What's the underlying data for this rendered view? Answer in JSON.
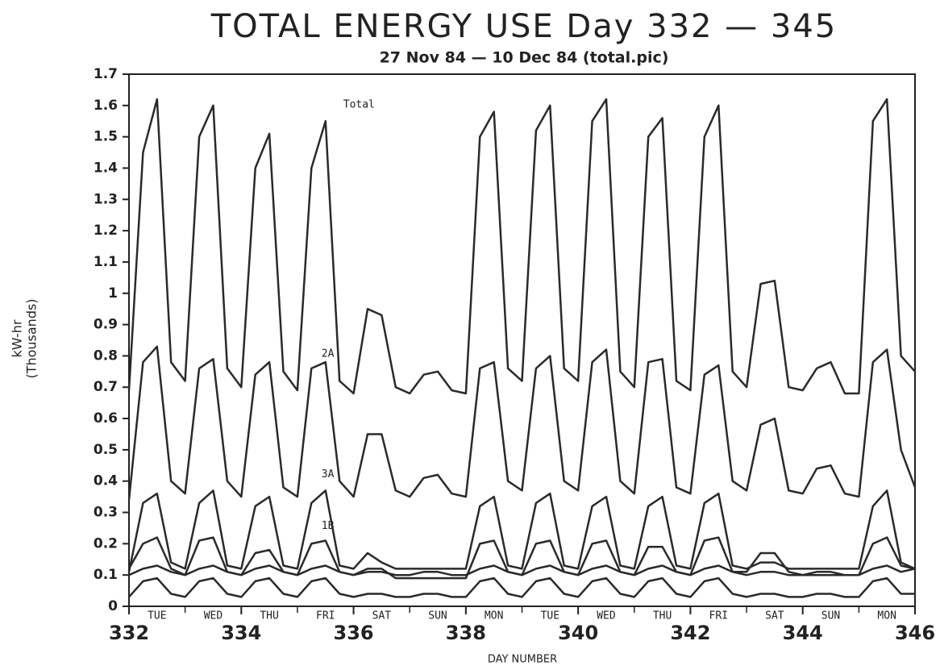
{
  "chart_data": {
    "type": "line",
    "title": "TOTAL ENERGY USE Day 332 — 345",
    "subtitle": "27 Nov 84 — 10 Dec 84 (total.pic)",
    "x_label": "DAY NUMBER",
    "y_label": [
      "kW-hr",
      "(Thousands)"
    ],
    "day_labels": [
      "TUE",
      "WED",
      "THU",
      "FRI",
      "SAT",
      "SUN",
      "MON",
      "TUE",
      "WED",
      "THU",
      "FRI",
      "SAT",
      "SUN",
      "MON"
    ],
    "xlim": [
      332,
      346
    ],
    "xticks": [
      332,
      334,
      336,
      338,
      340,
      342,
      344,
      346
    ],
    "ylim": [
      0,
      1.7
    ],
    "yticks": [
      0,
      0.1,
      0.2,
      0.3,
      0.4,
      0.5,
      0.6,
      0.7,
      0.8,
      0.9,
      1,
      1.1,
      1.2,
      1.3,
      1.4,
      1.5,
      1.6,
      1.7
    ],
    "x": [
      332,
      332.25,
      332.5,
      332.75,
      333,
      333.25,
      333.5,
      333.75,
      334,
      334.25,
      334.5,
      334.75,
      335,
      335.25,
      335.5,
      335.75,
      336,
      336.25,
      336.5,
      336.75,
      337,
      337.25,
      337.5,
      337.75,
      338,
      338.25,
      338.5,
      338.75,
      339,
      339.25,
      339.5,
      339.75,
      340,
      340.25,
      340.5,
      340.75,
      341,
      341.25,
      341.5,
      341.75,
      342,
      342.25,
      342.5,
      342.75,
      343,
      343.25,
      343.5,
      343.75,
      344,
      344.25,
      344.5,
      344.75,
      345,
      345.25,
      345.5,
      345.75,
      346
    ],
    "series": [
      {
        "name": "Total",
        "color": "#2a2a2a",
        "values": [
          0.69,
          1.45,
          1.62,
          0.78,
          0.72,
          1.5,
          1.6,
          0.76,
          0.7,
          1.4,
          1.51,
          0.75,
          0.69,
          1.4,
          1.55,
          0.72,
          0.68,
          0.95,
          0.93,
          0.7,
          0.68,
          0.74,
          0.75,
          0.69,
          0.68,
          1.5,
          1.58,
          0.76,
          0.72,
          1.52,
          1.6,
          0.76,
          0.72,
          1.55,
          1.62,
          0.75,
          0.7,
          1.5,
          1.56,
          0.72,
          0.69,
          1.5,
          1.6,
          0.75,
          0.7,
          1.03,
          1.04,
          0.7,
          0.69,
          0.76,
          0.78,
          0.68,
          0.68,
          1.55,
          1.62,
          0.8,
          0.75
        ]
      },
      {
        "name": "2A",
        "color": "#2a2a2a",
        "values": [
          0.34,
          0.78,
          0.83,
          0.4,
          0.36,
          0.76,
          0.79,
          0.4,
          0.35,
          0.74,
          0.78,
          0.38,
          0.35,
          0.76,
          0.78,
          0.4,
          0.35,
          0.55,
          0.55,
          0.37,
          0.35,
          0.41,
          0.42,
          0.36,
          0.35,
          0.76,
          0.78,
          0.4,
          0.37,
          0.76,
          0.8,
          0.4,
          0.37,
          0.78,
          0.82,
          0.4,
          0.36,
          0.78,
          0.79,
          0.38,
          0.36,
          0.74,
          0.77,
          0.4,
          0.37,
          0.58,
          0.6,
          0.37,
          0.36,
          0.44,
          0.45,
          0.36,
          0.35,
          0.78,
          0.82,
          0.5,
          0.38
        ]
      },
      {
        "name": "3A",
        "color": "#2a2a2a",
        "values": [
          0.11,
          0.33,
          0.36,
          0.14,
          0.12,
          0.33,
          0.37,
          0.13,
          0.12,
          0.32,
          0.35,
          0.13,
          0.12,
          0.33,
          0.37,
          0.13,
          0.12,
          0.17,
          0.14,
          0.12,
          0.12,
          0.12,
          0.12,
          0.12,
          0.12,
          0.32,
          0.35,
          0.13,
          0.12,
          0.33,
          0.36,
          0.13,
          0.12,
          0.32,
          0.35,
          0.13,
          0.12,
          0.32,
          0.35,
          0.13,
          0.12,
          0.33,
          0.36,
          0.13,
          0.12,
          0.14,
          0.14,
          0.12,
          0.12,
          0.12,
          0.12,
          0.12,
          0.12,
          0.32,
          0.37,
          0.14,
          0.12
        ]
      },
      {
        "name": "1B",
        "color": "#2a2a2a",
        "values": [
          0.12,
          0.2,
          0.22,
          0.12,
          0.1,
          0.21,
          0.22,
          0.11,
          0.1,
          0.17,
          0.18,
          0.11,
          0.1,
          0.2,
          0.21,
          0.11,
          0.1,
          0.12,
          0.12,
          0.09,
          0.09,
          0.09,
          0.09,
          0.09,
          0.09,
          0.2,
          0.21,
          0.11,
          0.1,
          0.2,
          0.21,
          0.11,
          0.1,
          0.2,
          0.21,
          0.11,
          0.1,
          0.19,
          0.19,
          0.11,
          0.1,
          0.21,
          0.22,
          0.11,
          0.11,
          0.17,
          0.17,
          0.11,
          0.1,
          0.1,
          0.1,
          0.1,
          0.1,
          0.2,
          0.22,
          0.13,
          0.12
        ]
      },
      {
        "color": "#2a2a2a",
        "values": [
          0.1,
          0.12,
          0.13,
          0.11,
          0.1,
          0.12,
          0.13,
          0.11,
          0.1,
          0.12,
          0.13,
          0.11,
          0.1,
          0.12,
          0.13,
          0.11,
          0.1,
          0.11,
          0.11,
          0.1,
          0.1,
          0.11,
          0.11,
          0.1,
          0.1,
          0.12,
          0.13,
          0.11,
          0.1,
          0.12,
          0.13,
          0.11,
          0.1,
          0.12,
          0.13,
          0.11,
          0.1,
          0.12,
          0.13,
          0.11,
          0.1,
          0.12,
          0.13,
          0.11,
          0.1,
          0.11,
          0.11,
          0.1,
          0.1,
          0.11,
          0.11,
          0.1,
          0.1,
          0.12,
          0.13,
          0.11,
          0.12
        ]
      },
      {
        "color": "#2a2a2a",
        "values": [
          0.03,
          0.08,
          0.09,
          0.04,
          0.03,
          0.08,
          0.09,
          0.04,
          0.03,
          0.08,
          0.09,
          0.04,
          0.03,
          0.08,
          0.09,
          0.04,
          0.03,
          0.04,
          0.04,
          0.03,
          0.03,
          0.04,
          0.04,
          0.03,
          0.03,
          0.08,
          0.09,
          0.04,
          0.03,
          0.08,
          0.09,
          0.04,
          0.03,
          0.08,
          0.09,
          0.04,
          0.03,
          0.08,
          0.09,
          0.04,
          0.03,
          0.08,
          0.09,
          0.04,
          0.03,
          0.04,
          0.04,
          0.03,
          0.03,
          0.04,
          0.04,
          0.03,
          0.03,
          0.08,
          0.09,
          0.04,
          0.04
        ]
      }
    ]
  }
}
